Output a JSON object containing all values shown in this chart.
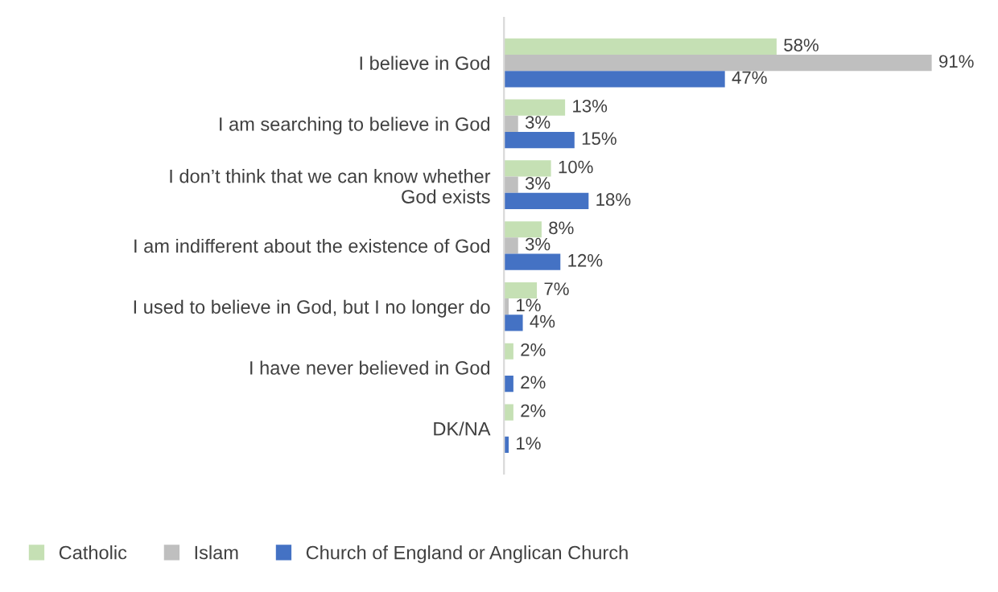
{
  "chart_data": {
    "type": "bar",
    "orientation": "horizontal",
    "legend": "bottom",
    "categories": [
      "I believe in God",
      "I am searching to believe in God",
      "I don’t think that we can know whether\nGod exists",
      "I am indifferent about the existence of God",
      "I used to believe in God, but I no longer do",
      "I have never believed in God",
      "DK/NA"
    ],
    "series": [
      {
        "name": "Catholic",
        "color": "#c5e0b4",
        "values": [
          58,
          13,
          10,
          8,
          7,
          2,
          2
        ],
        "value_labels": [
          "58%",
          "13%",
          "10%",
          "8%",
          "7%",
          "2%",
          "2%"
        ]
      },
      {
        "name": "Islam",
        "color": "#bfbfbf",
        "values": [
          91,
          3,
          3,
          3,
          1,
          null,
          null
        ],
        "value_labels": [
          "91%",
          "3%",
          "3%",
          "3%",
          "1%",
          null,
          null
        ]
      },
      {
        "name": "Church of England or Anglican Church",
        "color": "#4472c4",
        "values": [
          47,
          15,
          18,
          12,
          4,
          2,
          1
        ],
        "value_labels": [
          "47%",
          "15%",
          "18%",
          "12%",
          "4%",
          "2%",
          "1%"
        ]
      }
    ]
  }
}
